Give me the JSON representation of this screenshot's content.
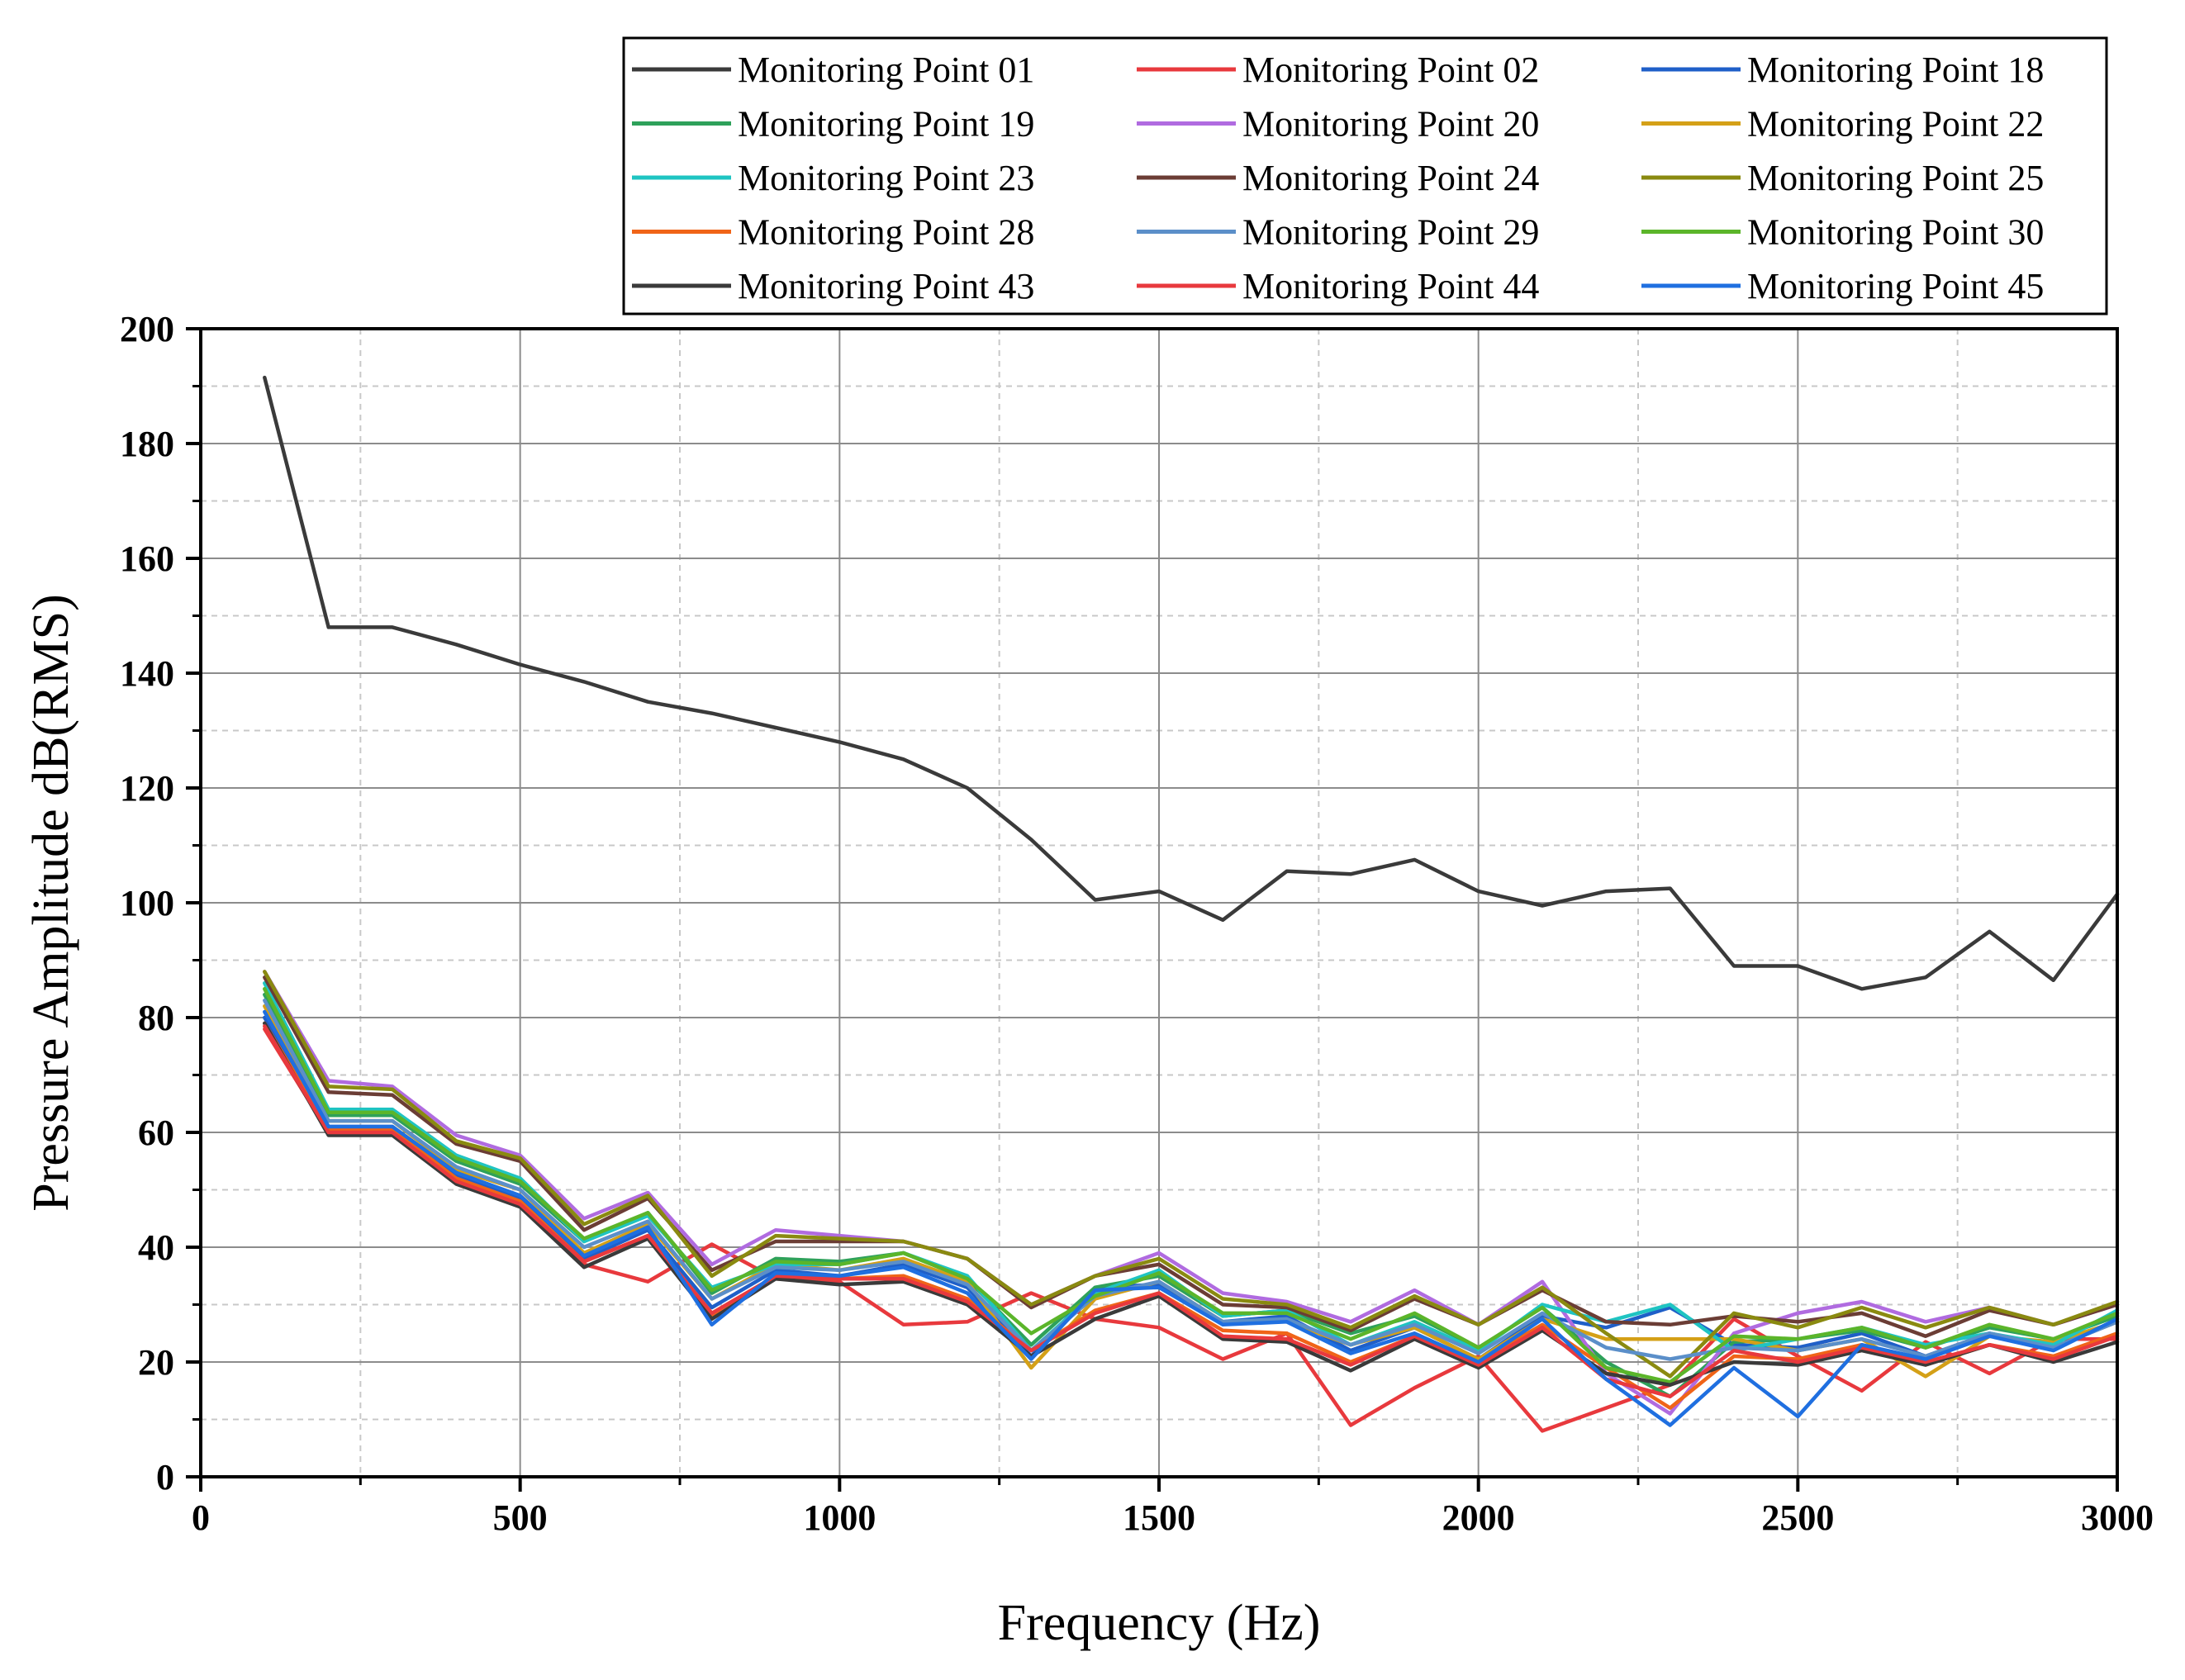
{
  "chart_data": {
    "type": "line",
    "title": "",
    "xlabel": "Frequency (Hz)",
    "ylabel": "Pressure Amplitude dB(RMS)",
    "xlim": [
      0,
      3000
    ],
    "ylim": [
      0,
      200
    ],
    "xticks": [
      0,
      500,
      1000,
      1500,
      2000,
      2500,
      3000
    ],
    "yticks": [
      0,
      20,
      40,
      60,
      80,
      100,
      120,
      140,
      160,
      180,
      200
    ],
    "grid": true,
    "legend_position": "top-right-outside",
    "x": [
      100,
      200,
      300,
      400,
      500,
      600,
      700,
      800,
      900,
      1000,
      1100,
      1200,
      1300,
      1400,
      1500,
      1600,
      1700,
      1800,
      1900,
      2000,
      2100,
      2200,
      2300,
      2400,
      2500,
      2600,
      2700,
      2800,
      2900,
      3000
    ],
    "series": [
      {
        "name": "Monitoring Point 01",
        "color": "#3a3a3a",
        "values": [
          191.5,
          148,
          148,
          145,
          141.5,
          138.5,
          135,
          133,
          130.5,
          128,
          125,
          120,
          111,
          100.5,
          102,
          97,
          105.5,
          105,
          107.5,
          102,
          99.5,
          102,
          102.5,
          89,
          89,
          85,
          87,
          95,
          86.5,
          101.5
        ]
      },
      {
        "name": "Monitoring Point 02",
        "color": "#e8393d",
        "values": [
          78,
          60,
          60,
          52,
          47.5,
          37,
          34,
          40.5,
          34.5,
          34,
          26.5,
          27,
          32,
          27.5,
          26,
          20.5,
          25,
          9,
          15.5,
          21,
          8,
          12,
          16,
          27.5,
          21,
          15,
          23.5,
          18,
          24,
          24
        ]
      },
      {
        "name": "Monitoring Point 18",
        "color": "#1f5fc8",
        "values": [
          80,
          61,
          61,
          52.5,
          48.5,
          38,
          43,
          29.5,
          36,
          35,
          37,
          33,
          21,
          33,
          33.5,
          27,
          28,
          22,
          26,
          20.5,
          28,
          26,
          29.5,
          23,
          22.5,
          25,
          21,
          25,
          22.5,
          27
        ]
      },
      {
        "name": "Monitoring Point 19",
        "color": "#2ea15a",
        "values": [
          84,
          63,
          63,
          55,
          51,
          41,
          46,
          32,
          38,
          37.5,
          39,
          34.5,
          23,
          33,
          35,
          28,
          29,
          25,
          28,
          22.5,
          29.5,
          20,
          14,
          23.5,
          24,
          25.5,
          22.5,
          26,
          24,
          28
        ]
      },
      {
        "name": "Monitoring Point 20",
        "color": "#b06be0",
        "values": [
          88,
          69,
          68,
          59.5,
          56,
          45,
          49.5,
          37,
          43,
          42,
          41,
          38,
          30,
          35,
          39,
          32,
          30.5,
          27,
          32.5,
          26.5,
          34,
          18,
          11,
          25,
          28.5,
          30.5,
          27,
          29.5,
          26.5,
          30
        ]
      },
      {
        "name": "Monitoring Point 22",
        "color": "#d4a017",
        "values": [
          82,
          62,
          62,
          53.5,
          50,
          39,
          44,
          31,
          37,
          36,
          38,
          34,
          19,
          31,
          34,
          27,
          27,
          23,
          26,
          20.5,
          27.5,
          24,
          24,
          24,
          22,
          24,
          17.5,
          24.5,
          23.5,
          27
        ]
      },
      {
        "name": "Monitoring Point 23",
        "color": "#1fc4c2",
        "values": [
          86,
          64,
          64,
          56,
          52,
          41,
          45.5,
          33,
          37,
          37,
          39,
          35,
          22,
          32,
          36,
          28,
          29,
          23,
          27,
          22,
          30,
          27,
          30,
          22,
          24,
          26,
          23,
          25,
          23,
          29
        ]
      },
      {
        "name": "Monitoring Point 24",
        "color": "#6b3d35",
        "values": [
          87,
          67,
          66.5,
          58,
          55,
          43,
          48.5,
          36,
          41,
          41,
          41,
          38,
          29.5,
          35,
          37,
          30,
          29.5,
          25.5,
          31,
          26.5,
          32.5,
          27,
          26.5,
          28,
          27,
          28.5,
          24.5,
          29,
          26.5,
          30
        ]
      },
      {
        "name": "Monitoring Point 25",
        "color": "#8a8a10",
        "values": [
          88,
          68,
          67.5,
          58.5,
          55.5,
          44,
          49,
          35,
          42,
          41.5,
          41,
          38,
          30,
          35,
          38,
          31,
          30,
          26,
          31.5,
          26.5,
          33,
          25,
          17.5,
          28.5,
          26,
          29.5,
          26,
          29.5,
          26.5,
          30.5
        ]
      },
      {
        "name": "Monitoring Point 28",
        "color": "#f06418",
        "values": [
          79,
          60.5,
          60.5,
          52,
          48,
          37.5,
          42,
          28,
          35,
          34.5,
          35,
          31,
          22,
          29,
          32,
          25.5,
          25,
          20,
          24.5,
          20,
          26.5,
          19,
          12,
          21,
          20.5,
          23,
          19.5,
          23,
          21,
          25
        ]
      },
      {
        "name": "Monitoring Point 29",
        "color": "#5b8fc9",
        "values": [
          83,
          62,
          62,
          54,
          50,
          40,
          44.5,
          31,
          36.5,
          36,
          37.5,
          33.5,
          22,
          31.5,
          34,
          27,
          27.5,
          23,
          26.5,
          21.5,
          28.5,
          22.5,
          20.5,
          22.5,
          22,
          24,
          21,
          25,
          22.5,
          27
        ]
      },
      {
        "name": "Monitoring Point 30",
        "color": "#5bb52a",
        "values": [
          85,
          63.5,
          63.5,
          55.5,
          51.5,
          41.5,
          46,
          32.5,
          37.5,
          37,
          39,
          34.5,
          25,
          31.5,
          35.5,
          28.5,
          28.5,
          24,
          28.5,
          22.5,
          29.5,
          19,
          16.5,
          24.5,
          24,
          26,
          22.5,
          26.5,
          24,
          28.5
        ]
      },
      {
        "name": "Monitoring Point 43",
        "color": "#3a3a3a",
        "values": [
          79,
          59.5,
          59.5,
          51,
          47,
          36.5,
          41.5,
          27.5,
          34.5,
          33.5,
          34,
          30,
          21,
          27.5,
          31.5,
          24,
          23.5,
          18.5,
          24,
          19,
          25.5,
          18,
          16,
          20,
          19.5,
          22,
          19.5,
          23,
          20,
          23.5
        ]
      },
      {
        "name": "Monitoring Point 44",
        "color": "#e8393d",
        "values": [
          78.5,
          60,
          60,
          51.5,
          47.5,
          37.5,
          42,
          28.5,
          35,
          34.5,
          34.5,
          30.5,
          22,
          28.5,
          32,
          24.5,
          24,
          19.5,
          24.5,
          19.5,
          26,
          17,
          14,
          22,
          20,
          22.5,
          20,
          23,
          20.5,
          24.5
        ]
      },
      {
        "name": "Monitoring Point 45",
        "color": "#1f6fe0",
        "values": [
          81,
          61,
          61,
          53,
          49,
          38.5,
          43.5,
          26.5,
          35.5,
          35,
          36.5,
          32,
          20.5,
          32.5,
          33,
          26.5,
          27,
          21.5,
          25,
          20,
          27.5,
          17,
          9,
          19,
          10.5,
          23,
          20.5,
          24.5,
          22,
          27.5
        ]
      }
    ]
  }
}
